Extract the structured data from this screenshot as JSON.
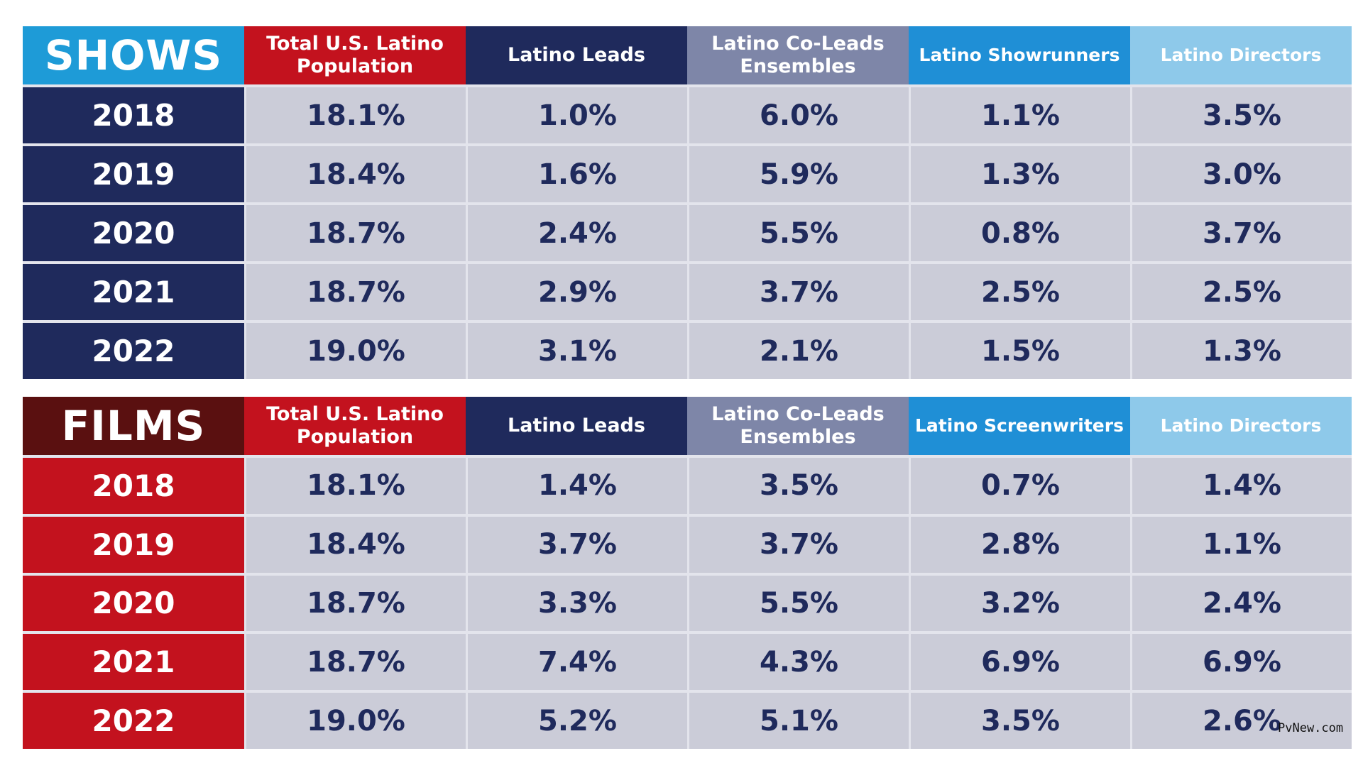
{
  "colors": {
    "shows_title_bg": "#1e9bd7",
    "films_title_bg": "#5a1010",
    "col_pop": "#c3121e",
    "col_leads": "#1f2a5c",
    "col_coleads": "#7e86a8",
    "col_showrunners": "#1f8fd6",
    "col_directors": "#8ec9ea",
    "cell_bg": "#cbccd8",
    "cell_text": "#1f2a5c"
  },
  "chart_data": [
    {
      "type": "table",
      "title": "SHOWS",
      "columns": [
        "Total U.S. Latino Population",
        "Latino Leads",
        "Latino Co-Leads Ensembles",
        "Latino Showrunners",
        "Latino Directors"
      ],
      "rows": [
        {
          "year": "2018",
          "values": [
            "18.1%",
            "1.0%",
            "6.0%",
            "1.1%",
            "3.5%"
          ]
        },
        {
          "year": "2019",
          "values": [
            "18.4%",
            "1.6%",
            "5.9%",
            "1.3%",
            "3.0%"
          ]
        },
        {
          "year": "2020",
          "values": [
            "18.7%",
            "2.4%",
            "5.5%",
            "0.8%",
            "3.7%"
          ]
        },
        {
          "year": "2021",
          "values": [
            "18.7%",
            "2.9%",
            "3.7%",
            "2.5%",
            "2.5%"
          ]
        },
        {
          "year": "2022",
          "values": [
            "19.0%",
            "3.1%",
            "2.1%",
            "1.5%",
            "1.3%"
          ]
        }
      ]
    },
    {
      "type": "table",
      "title": "FILMS",
      "columns": [
        "Total U.S. Latino Population",
        "Latino Leads",
        "Latino Co-Leads Ensembles",
        "Latino Screenwriters",
        "Latino Directors"
      ],
      "rows": [
        {
          "year": "2018",
          "values": [
            "18.1%",
            "1.4%",
            "3.5%",
            "0.7%",
            "1.4%"
          ]
        },
        {
          "year": "2019",
          "values": [
            "18.4%",
            "3.7%",
            "3.7%",
            "2.8%",
            "1.1%"
          ]
        },
        {
          "year": "2020",
          "values": [
            "18.7%",
            "3.3%",
            "5.5%",
            "3.2%",
            "2.4%"
          ]
        },
        {
          "year": "2021",
          "values": [
            "18.7%",
            "7.4%",
            "4.3%",
            "6.9%",
            "6.9%"
          ]
        },
        {
          "year": "2022",
          "values": [
            "19.0%",
            "5.2%",
            "5.1%",
            "3.5%",
            "2.6%"
          ]
        }
      ]
    }
  ],
  "watermark": "PvNew.com"
}
